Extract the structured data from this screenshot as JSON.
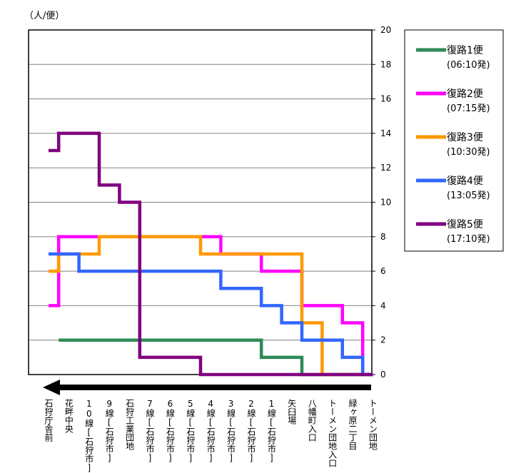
{
  "unit_label": "（人/便）",
  "chart_data": {
    "type": "line",
    "step": true,
    "ylim": [
      0,
      20
    ],
    "yticks": [
      0,
      2,
      4,
      6,
      8,
      10,
      12,
      14,
      16,
      18,
      20
    ],
    "grid": true,
    "legend_position": "right",
    "categories": [
      "石狩庁舎前",
      "花畔中央",
      "10線[石狩市]",
      "9線[石狩市]",
      "石狩工業団地",
      "7線[石狩市]",
      "6線[石狩市]",
      "5線[石狩市]",
      "4線[石狩市]",
      "3線[石狩市]",
      "2線[石狩市]",
      "1線[石狩市]",
      "矢臼場",
      "八幡町入口",
      "トーメン団地入口",
      "緑ヶ原二丁目",
      "トーメン団地"
    ],
    "series": [
      {
        "name": "復路1便",
        "time": "(06:10発)",
        "color": "#2e8b57",
        "values": [
          null,
          2,
          2,
          2,
          2,
          2,
          2,
          2,
          2,
          2,
          2,
          1,
          1,
          0,
          0,
          0,
          0
        ]
      },
      {
        "name": "復路2便",
        "time": "(07:15発)",
        "color": "#ff00ff",
        "values": [
          4,
          8,
          8,
          8,
          8,
          8,
          8,
          8,
          8,
          7,
          7,
          6,
          6,
          4,
          4,
          3,
          0
        ]
      },
      {
        "name": "復路3便",
        "time": "(10:30発)",
        "color": "#ff9900",
        "values": [
          6,
          7,
          7,
          8,
          8,
          8,
          8,
          8,
          7,
          7,
          7,
          7,
          7,
          3,
          0,
          0,
          0
        ]
      },
      {
        "name": "復路4便",
        "time": "(13:05発)",
        "color": "#3366ff",
        "values": [
          7,
          7,
          6,
          6,
          6,
          6,
          6,
          6,
          6,
          5,
          5,
          4,
          3,
          2,
          2,
          1,
          0
        ]
      },
      {
        "name": "復路5便",
        "time": "(17:10発)",
        "color": "#800080",
        "values": [
          13,
          14,
          14,
          11,
          10,
          1,
          1,
          1,
          0,
          0,
          0,
          0,
          0,
          0,
          0,
          0,
          0
        ]
      }
    ]
  }
}
